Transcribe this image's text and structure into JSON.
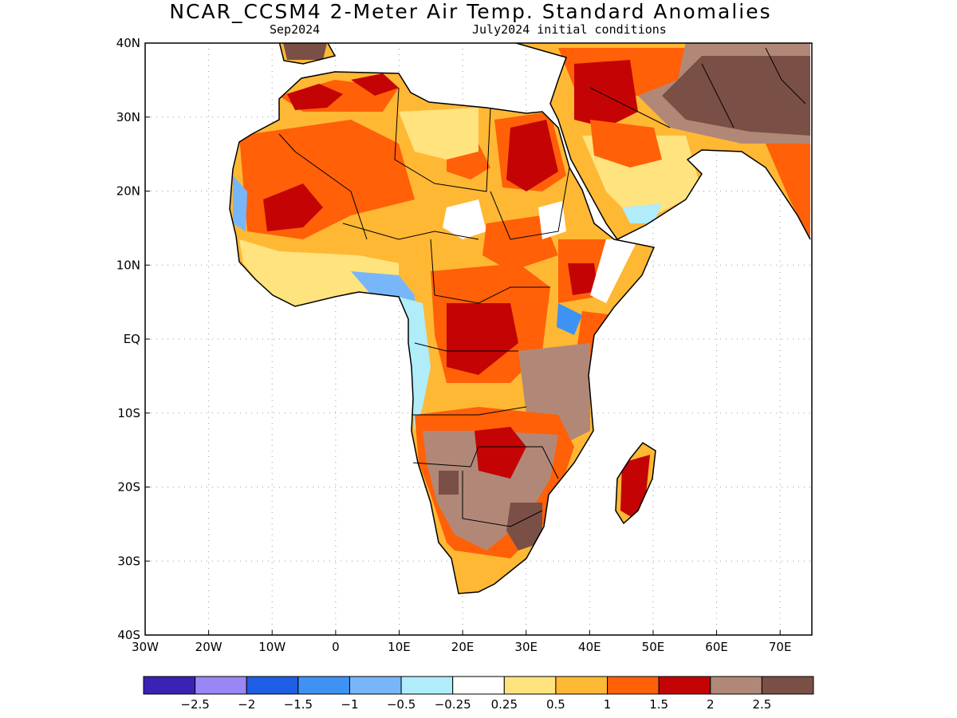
{
  "title": "NCAR_CCSM4 2-Meter Air Temp. Standard Anomalies",
  "subtitle_left": "Sep2024",
  "subtitle_right": "July2024 initial conditions",
  "axes": {
    "lon_labels": [
      "30W",
      "20W",
      "10W",
      "0",
      "10E",
      "20E",
      "30E",
      "40E",
      "50E",
      "60E",
      "70E"
    ],
    "lat_labels": [
      "40N",
      "30N",
      "20N",
      "10N",
      "EQ",
      "10S",
      "20S",
      "30S",
      "40S"
    ],
    "lon_range": [
      -30,
      75
    ],
    "lat_range": [
      -40,
      40
    ],
    "grid": "dotted"
  },
  "legend": {
    "placement": "bottom",
    "colors": [
      "#3a22b4",
      "#9a86f4",
      "#1e5ee6",
      "#3e92f4",
      "#78b6fa",
      "#b0ecfa",
      "#ffffff",
      "#ffe37e",
      "#ffb834",
      "#ff6008",
      "#c40404",
      "#b18878",
      "#7a5046"
    ],
    "labels": [
      "-2.5",
      "-2",
      "-1.5",
      "-1",
      "-0.5",
      "-0.25",
      "0.25",
      "0.5",
      "1",
      "1.5",
      "2",
      "2.5"
    ]
  }
}
